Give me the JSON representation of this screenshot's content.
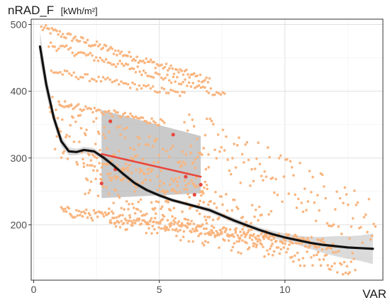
{
  "chart_data": {
    "type": "scatter",
    "title": "",
    "ylabel": "nRAD_F",
    "ylabel_unit": "[kWh/m²]",
    "xlabel": "VAR",
    "xlim": [
      -0.1,
      13.9
    ],
    "ylim": [
      117,
      508
    ],
    "x_ticks": [
      0,
      5,
      10
    ],
    "y_ticks": [
      200,
      300,
      400,
      500
    ],
    "grid": true,
    "background": "#ffffff",
    "series": [
      {
        "role": "scatter",
        "style": "points",
        "color": "#f9b57f",
        "clusters": [
          {
            "band": "upper",
            "x_range": [
              0.3,
              7.0
            ],
            "y_start": 495,
            "y_end": 415,
            "count": 110,
            "spread": 6
          },
          {
            "band": "upper",
            "x_range": [
              0.6,
              7.6
            ],
            "y_start": 470,
            "y_end": 395,
            "count": 90,
            "spread": 6
          },
          {
            "band": "upper",
            "x_range": [
              0.7,
              6.0
            ],
            "y_start": 430,
            "y_end": 395,
            "count": 60,
            "spread": 5
          },
          {
            "band": "upper",
            "x_range": [
              1.0,
              5.2
            ],
            "y_start": 382,
            "y_end": 352,
            "count": 60,
            "spread": 5
          },
          {
            "band": "fan",
            "x_range": [
              0.6,
              7.0
            ],
            "y_start": 350,
            "y_end": 255,
            "count": 180,
            "spread": 45
          },
          {
            "band": "fan",
            "x_range": [
              2.0,
              9.5
            ],
            "y_start": 280,
            "y_end": 190,
            "count": 160,
            "spread": 35
          },
          {
            "band": "lower",
            "x_range": [
              1.1,
              12.0
            ],
            "y_start": 220,
            "y_end": 170,
            "count": 220,
            "spread": 8
          },
          {
            "band": "lower",
            "x_range": [
              3.0,
              12.8
            ],
            "y_start": 215,
            "y_end": 140,
            "count": 180,
            "spread": 18
          },
          {
            "band": "scatter",
            "x_range": [
              6.0,
              13.6
            ],
            "y_start": 340,
            "y_end": 200,
            "count": 120,
            "spread": 40
          }
        ]
      },
      {
        "role": "highlight",
        "style": "points",
        "color": "#e8473b",
        "x": [
          2.7,
          3.05,
          3.25,
          5.55,
          6.05,
          6.4,
          6.65
        ],
        "y": [
          262,
          355,
          283,
          335,
          272,
          245,
          260
        ]
      },
      {
        "role": "trend",
        "style": "smooth",
        "color": "#111111",
        "band_color": "#bdbdbd",
        "x": [
          0.25,
          0.5,
          0.8,
          1.1,
          1.4,
          1.7,
          2.0,
          2.4,
          2.8,
          3.2,
          3.6,
          4.0,
          4.5,
          5.0,
          5.5,
          6.0,
          6.5,
          7.0,
          7.5,
          8.0,
          8.5,
          9.0,
          9.5,
          10.0,
          10.5,
          11.0,
          11.5,
          12.0,
          12.5,
          13.0,
          13.5
        ],
        "y": [
          467,
          410,
          360,
          325,
          310,
          309,
          312,
          310,
          300,
          288,
          275,
          263,
          252,
          244,
          237,
          232,
          227,
          222,
          214,
          206,
          199,
          192,
          186,
          181,
          177,
          173,
          170,
          168,
          166,
          165,
          164
        ],
        "band_lower": [
          445,
          395,
          350,
          317,
          304,
          304,
          307,
          305,
          296,
          284,
          271,
          259,
          249,
          241,
          234,
          229,
          224,
          218,
          210,
          202,
          195,
          188,
          181,
          175,
          170,
          164,
          158,
          153,
          149,
          146,
          141
        ],
        "band_upper": [
          489,
          425,
          370,
          333,
          316,
          314,
          317,
          315,
          304,
          292,
          279,
          267,
          255,
          247,
          240,
          235,
          230,
          226,
          218,
          210,
          203,
          196,
          191,
          187,
          184,
          182,
          182,
          183,
          183,
          184,
          187
        ]
      },
      {
        "role": "trend",
        "style": "linear",
        "color": "#e8473b",
        "band_color": "#9e9e9e",
        "x": [
          2.7,
          6.65
        ],
        "y": [
          306,
          272
        ],
        "band_lower": [
          240,
          247
        ],
        "band_upper": [
          372,
          333
        ]
      }
    ]
  }
}
